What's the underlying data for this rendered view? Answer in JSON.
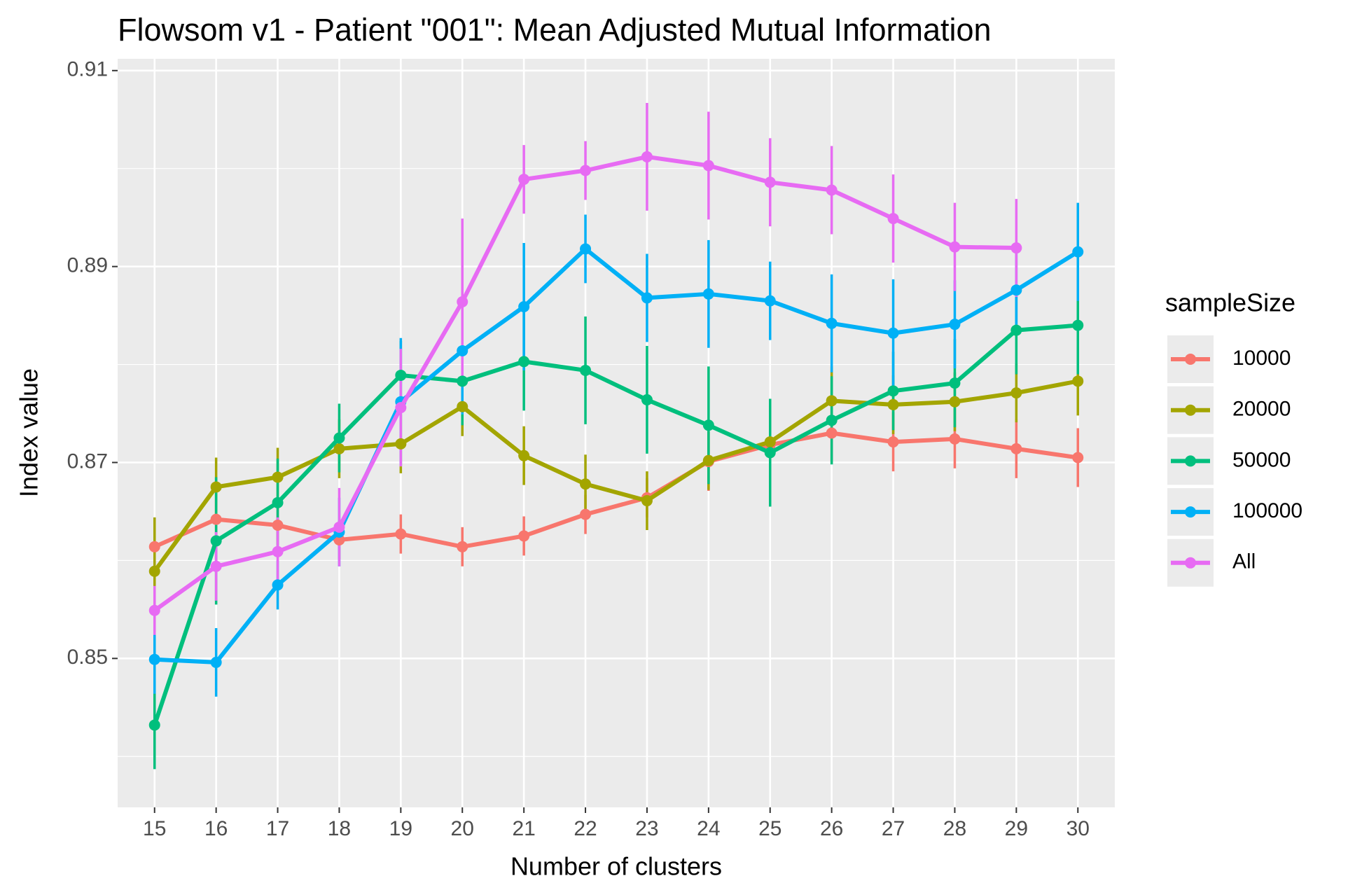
{
  "chart_data": {
    "type": "line",
    "title": "Flowsom v1 - Patient \"001\": Mean Adjusted Mutual Information",
    "x_label": "Number of clusters",
    "y_label": "Index value",
    "legend_title": "sampleSize",
    "legend": "right",
    "grid": true,
    "categories": [
      "15",
      "16",
      "17",
      "18",
      "19",
      "20",
      "21",
      "22",
      "23",
      "24",
      "25",
      "26",
      "27",
      "28",
      "29",
      "30"
    ],
    "ylim": [
      0.8348,
      0.9112
    ],
    "yticks": [
      0.85,
      0.87,
      0.89,
      0.91
    ],
    "series": [
      {
        "name": "10000",
        "color": "#F8766D",
        "values": [
          0.8614,
          0.8642,
          0.8636,
          0.8621,
          0.8627,
          0.8614,
          0.8625,
          0.8647,
          0.8664,
          0.8701,
          0.8718,
          0.873,
          0.8721,
          0.8724,
          0.8714,
          0.8705
        ],
        "errors": [
          0.002,
          0.002,
          0.002,
          0.002,
          0.002,
          0.002,
          0.002,
          0.002,
          0.002,
          0.003,
          0.004,
          0.003,
          0.003,
          0.003,
          0.003,
          0.003
        ]
      },
      {
        "name": "20000",
        "color": "#A3A500",
        "values": [
          0.8589,
          0.8675,
          0.8685,
          0.8714,
          0.8719,
          0.8757,
          0.8707,
          0.8678,
          0.8661,
          0.8702,
          0.8721,
          0.8763,
          0.8759,
          0.8762,
          0.8771,
          0.8783
        ],
        "errors": [
          0.0055,
          0.003,
          0.003,
          0.003,
          0.003,
          0.003,
          0.003,
          0.003,
          0.003,
          0.003,
          0.003,
          0.0035,
          0.003,
          0.003,
          0.003,
          0.0035
        ]
      },
      {
        "name": "50000",
        "color": "#00BF7D",
        "values": [
          0.8432,
          0.862,
          0.8659,
          0.8725,
          0.8789,
          0.8783,
          0.8803,
          0.8794,
          0.8764,
          0.8738,
          0.871,
          0.8743,
          0.8773,
          0.8781,
          0.8835,
          0.884
        ],
        "errors": [
          0.0045,
          0.0065,
          0.0045,
          0.0035,
          0.0035,
          0.0045,
          0.005,
          0.0055,
          0.0055,
          0.006,
          0.0055,
          0.0045,
          0.004,
          0.0045,
          0.0045,
          0.005
        ]
      },
      {
        "name": "100000",
        "color": "#00B0F6",
        "values": [
          0.8499,
          0.8496,
          0.8575,
          0.8629,
          0.8762,
          0.8814,
          0.8859,
          0.8918,
          0.8868,
          0.8872,
          0.8865,
          0.8842,
          0.8832,
          0.8841,
          0.8876,
          0.8915
        ],
        "errors": [
          0.0035,
          0.0035,
          0.0025,
          0.0035,
          0.0065,
          0.0065,
          0.0065,
          0.0035,
          0.0045,
          0.0055,
          0.004,
          0.005,
          0.0055,
          0.0045,
          0.004,
          0.005
        ]
      },
      {
        "name": "All",
        "color": "#E76BF3",
        "values": [
          0.8549,
          0.8594,
          0.8609,
          0.8634,
          0.8756,
          0.8864,
          0.8989,
          0.8998,
          0.9012,
          0.9003,
          0.8986,
          0.8978,
          0.8949,
          0.892,
          0.8919,
          null
        ],
        "errors": [
          0.0025,
          0.0035,
          0.0035,
          0.004,
          0.006,
          0.0085,
          0.0035,
          0.003,
          0.0055,
          0.0055,
          0.0045,
          0.0045,
          0.0045,
          0.0045,
          0.005,
          null
        ]
      }
    ]
  }
}
